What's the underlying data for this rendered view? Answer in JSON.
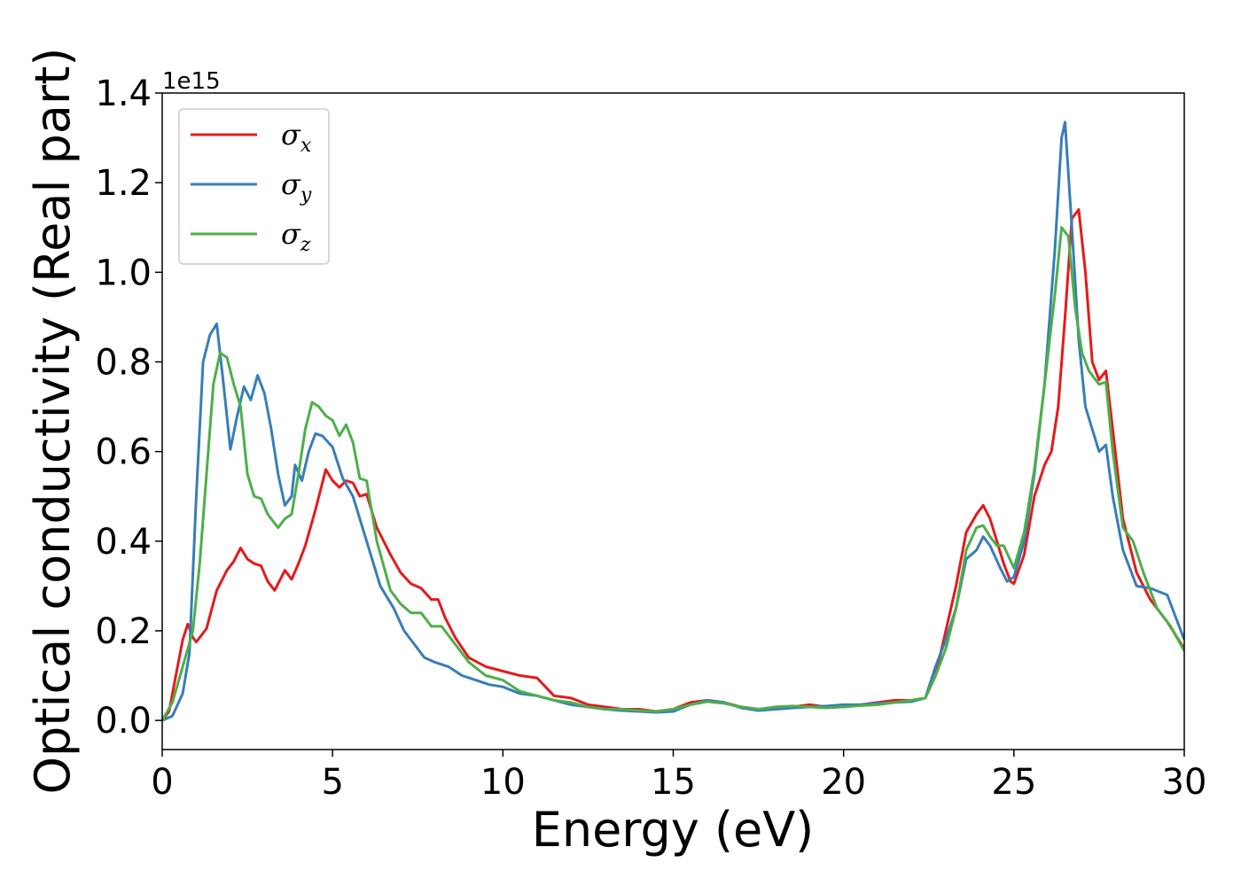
{
  "chart_data": {
    "type": "line",
    "xlabel": "Energy (eV)",
    "ylabel": "Optical conductivity (Real part)",
    "y_offset_label": "1e15",
    "xlim": [
      0,
      30
    ],
    "ylim": [
      -0.065,
      1.4
    ],
    "x_ticks": [
      0,
      5,
      10,
      15,
      20,
      25,
      30
    ],
    "x_tick_labels": [
      "0",
      "5",
      "10",
      "15",
      "20",
      "25",
      "30"
    ],
    "y_ticks": [
      0.0,
      0.2,
      0.4,
      0.6,
      0.8,
      1.0,
      1.2,
      1.4
    ],
    "y_tick_labels": [
      "0.0",
      "0.2",
      "0.4",
      "0.6",
      "0.8",
      "1.0",
      "1.2",
      "1.4"
    ],
    "grid": false,
    "legend_position": "top-left",
    "series": [
      {
        "name": "σ",
        "subscript": "x",
        "color": "#e41a1c",
        "points": [
          [
            0.0,
            0.0
          ],
          [
            0.2,
            0.02
          ],
          [
            0.4,
            0.1
          ],
          [
            0.6,
            0.18
          ],
          [
            0.75,
            0.215
          ],
          [
            0.9,
            0.185
          ],
          [
            1.0,
            0.175
          ],
          [
            1.3,
            0.205
          ],
          [
            1.6,
            0.29
          ],
          [
            1.9,
            0.335
          ],
          [
            2.1,
            0.355
          ],
          [
            2.3,
            0.385
          ],
          [
            2.5,
            0.36
          ],
          [
            2.7,
            0.35
          ],
          [
            2.9,
            0.345
          ],
          [
            3.1,
            0.31
          ],
          [
            3.3,
            0.29
          ],
          [
            3.6,
            0.335
          ],
          [
            3.8,
            0.315
          ],
          [
            4.0,
            0.35
          ],
          [
            4.2,
            0.39
          ],
          [
            4.5,
            0.47
          ],
          [
            4.8,
            0.56
          ],
          [
            5.0,
            0.535
          ],
          [
            5.2,
            0.52
          ],
          [
            5.4,
            0.535
          ],
          [
            5.6,
            0.53
          ],
          [
            5.8,
            0.5
          ],
          [
            6.0,
            0.505
          ],
          [
            6.3,
            0.43
          ],
          [
            6.7,
            0.37
          ],
          [
            7.0,
            0.33
          ],
          [
            7.3,
            0.305
          ],
          [
            7.6,
            0.295
          ],
          [
            7.9,
            0.27
          ],
          [
            8.1,
            0.27
          ],
          [
            8.3,
            0.23
          ],
          [
            8.6,
            0.185
          ],
          [
            9.0,
            0.14
          ],
          [
            9.5,
            0.12
          ],
          [
            10.0,
            0.11
          ],
          [
            10.5,
            0.1
          ],
          [
            11.0,
            0.095
          ],
          [
            11.5,
            0.055
          ],
          [
            12.0,
            0.05
          ],
          [
            12.5,
            0.035
          ],
          [
            13.0,
            0.03
          ],
          [
            13.5,
            0.025
          ],
          [
            14.0,
            0.025
          ],
          [
            14.5,
            0.02
          ],
          [
            15.0,
            0.025
          ],
          [
            15.5,
            0.04
          ],
          [
            16.0,
            0.045
          ],
          [
            16.5,
            0.04
          ],
          [
            17.0,
            0.03
          ],
          [
            17.5,
            0.025
          ],
          [
            18.0,
            0.028
          ],
          [
            18.5,
            0.03
          ],
          [
            19.0,
            0.035
          ],
          [
            19.5,
            0.03
          ],
          [
            20.0,
            0.03
          ],
          [
            20.5,
            0.035
          ],
          [
            21.0,
            0.04
          ],
          [
            21.5,
            0.045
          ],
          [
            22.0,
            0.045
          ],
          [
            22.4,
            0.05
          ],
          [
            22.7,
            0.1
          ],
          [
            23.0,
            0.2
          ],
          [
            23.3,
            0.3
          ],
          [
            23.6,
            0.42
          ],
          [
            23.9,
            0.46
          ],
          [
            24.1,
            0.48
          ],
          [
            24.3,
            0.45
          ],
          [
            24.5,
            0.4
          ],
          [
            24.7,
            0.35
          ],
          [
            24.9,
            0.31
          ],
          [
            25.0,
            0.305
          ],
          [
            25.3,
            0.37
          ],
          [
            25.6,
            0.5
          ],
          [
            25.9,
            0.57
          ],
          [
            26.1,
            0.6
          ],
          [
            26.3,
            0.7
          ],
          [
            26.5,
            0.9
          ],
          [
            26.7,
            1.12
          ],
          [
            26.9,
            1.14
          ],
          [
            27.1,
            1.0
          ],
          [
            27.3,
            0.8
          ],
          [
            27.5,
            0.76
          ],
          [
            27.7,
            0.78
          ],
          [
            27.9,
            0.65
          ],
          [
            28.2,
            0.45
          ],
          [
            28.6,
            0.33
          ],
          [
            29.0,
            0.27
          ],
          [
            29.5,
            0.22
          ],
          [
            30.0,
            0.16
          ]
        ]
      },
      {
        "name": "σ",
        "subscript": "y",
        "color": "#377eb8",
        "points": [
          [
            0.0,
            0.0
          ],
          [
            0.3,
            0.01
          ],
          [
            0.6,
            0.06
          ],
          [
            0.8,
            0.15
          ],
          [
            1.0,
            0.5
          ],
          [
            1.2,
            0.8
          ],
          [
            1.4,
            0.86
          ],
          [
            1.6,
            0.885
          ],
          [
            1.8,
            0.75
          ],
          [
            2.0,
            0.605
          ],
          [
            2.2,
            0.68
          ],
          [
            2.4,
            0.745
          ],
          [
            2.6,
            0.715
          ],
          [
            2.8,
            0.77
          ],
          [
            3.0,
            0.73
          ],
          [
            3.2,
            0.65
          ],
          [
            3.4,
            0.55
          ],
          [
            3.6,
            0.48
          ],
          [
            3.8,
            0.5
          ],
          [
            3.9,
            0.57
          ],
          [
            4.1,
            0.535
          ],
          [
            4.3,
            0.6
          ],
          [
            4.5,
            0.64
          ],
          [
            4.7,
            0.635
          ],
          [
            5.0,
            0.61
          ],
          [
            5.3,
            0.54
          ],
          [
            5.6,
            0.5
          ],
          [
            6.0,
            0.4
          ],
          [
            6.4,
            0.3
          ],
          [
            6.8,
            0.25
          ],
          [
            7.1,
            0.2
          ],
          [
            7.4,
            0.17
          ],
          [
            7.7,
            0.14
          ],
          [
            8.0,
            0.13
          ],
          [
            8.4,
            0.12
          ],
          [
            8.8,
            0.1
          ],
          [
            9.2,
            0.09
          ],
          [
            9.6,
            0.08
          ],
          [
            10.0,
            0.075
          ],
          [
            10.5,
            0.06
          ],
          [
            11.0,
            0.055
          ],
          [
            11.5,
            0.045
          ],
          [
            12.0,
            0.035
          ],
          [
            12.5,
            0.03
          ],
          [
            13.0,
            0.025
          ],
          [
            13.5,
            0.022
          ],
          [
            14.0,
            0.02
          ],
          [
            14.5,
            0.018
          ],
          [
            15.0,
            0.02
          ],
          [
            15.5,
            0.035
          ],
          [
            16.0,
            0.045
          ],
          [
            16.5,
            0.04
          ],
          [
            17.0,
            0.028
          ],
          [
            17.5,
            0.022
          ],
          [
            18.0,
            0.025
          ],
          [
            18.5,
            0.028
          ],
          [
            19.0,
            0.03
          ],
          [
            19.5,
            0.032
          ],
          [
            20.0,
            0.035
          ],
          [
            20.5,
            0.035
          ],
          [
            21.0,
            0.038
          ],
          [
            21.5,
            0.04
          ],
          [
            22.0,
            0.042
          ],
          [
            22.4,
            0.05
          ],
          [
            22.7,
            0.12
          ],
          [
            23.0,
            0.18
          ],
          [
            23.3,
            0.25
          ],
          [
            23.6,
            0.36
          ],
          [
            23.9,
            0.38
          ],
          [
            24.1,
            0.41
          ],
          [
            24.3,
            0.39
          ],
          [
            24.6,
            0.34
          ],
          [
            24.8,
            0.31
          ],
          [
            25.0,
            0.32
          ],
          [
            25.3,
            0.4
          ],
          [
            25.6,
            0.55
          ],
          [
            25.9,
            0.75
          ],
          [
            26.2,
            1.05
          ],
          [
            26.4,
            1.3
          ],
          [
            26.5,
            1.335
          ],
          [
            26.7,
            1.1
          ],
          [
            26.9,
            0.85
          ],
          [
            27.1,
            0.7
          ],
          [
            27.3,
            0.65
          ],
          [
            27.5,
            0.6
          ],
          [
            27.7,
            0.615
          ],
          [
            27.9,
            0.5
          ],
          [
            28.2,
            0.38
          ],
          [
            28.6,
            0.3
          ],
          [
            29.0,
            0.295
          ],
          [
            29.5,
            0.28
          ],
          [
            30.0,
            0.18
          ]
        ]
      },
      {
        "name": "σ",
        "subscript": "z",
        "color": "#4daf4a",
        "points": [
          [
            0.0,
            0.0
          ],
          [
            0.3,
            0.04
          ],
          [
            0.6,
            0.12
          ],
          [
            0.9,
            0.2
          ],
          [
            1.1,
            0.35
          ],
          [
            1.3,
            0.55
          ],
          [
            1.5,
            0.75
          ],
          [
            1.7,
            0.82
          ],
          [
            1.9,
            0.81
          ],
          [
            2.1,
            0.75
          ],
          [
            2.3,
            0.7
          ],
          [
            2.5,
            0.55
          ],
          [
            2.7,
            0.5
          ],
          [
            2.9,
            0.495
          ],
          [
            3.1,
            0.46
          ],
          [
            3.4,
            0.43
          ],
          [
            3.6,
            0.45
          ],
          [
            3.8,
            0.46
          ],
          [
            4.0,
            0.55
          ],
          [
            4.2,
            0.65
          ],
          [
            4.4,
            0.71
          ],
          [
            4.6,
            0.7
          ],
          [
            4.8,
            0.68
          ],
          [
            5.0,
            0.67
          ],
          [
            5.2,
            0.635
          ],
          [
            5.4,
            0.66
          ],
          [
            5.6,
            0.62
          ],
          [
            5.8,
            0.54
          ],
          [
            6.0,
            0.535
          ],
          [
            6.3,
            0.4
          ],
          [
            6.7,
            0.29
          ],
          [
            7.0,
            0.26
          ],
          [
            7.3,
            0.24
          ],
          [
            7.6,
            0.24
          ],
          [
            7.9,
            0.21
          ],
          [
            8.2,
            0.21
          ],
          [
            8.6,
            0.17
          ],
          [
            9.0,
            0.13
          ],
          [
            9.5,
            0.1
          ],
          [
            10.0,
            0.09
          ],
          [
            10.5,
            0.065
          ],
          [
            11.0,
            0.055
          ],
          [
            11.5,
            0.045
          ],
          [
            12.0,
            0.04
          ],
          [
            12.5,
            0.03
          ],
          [
            13.0,
            0.025
          ],
          [
            13.5,
            0.025
          ],
          [
            14.0,
            0.022
          ],
          [
            14.5,
            0.02
          ],
          [
            15.0,
            0.025
          ],
          [
            15.5,
            0.035
          ],
          [
            16.0,
            0.042
          ],
          [
            16.5,
            0.038
          ],
          [
            17.0,
            0.03
          ],
          [
            17.5,
            0.025
          ],
          [
            18.0,
            0.03
          ],
          [
            18.5,
            0.032
          ],
          [
            19.0,
            0.03
          ],
          [
            19.5,
            0.028
          ],
          [
            20.0,
            0.03
          ],
          [
            20.5,
            0.033
          ],
          [
            21.0,
            0.035
          ],
          [
            21.5,
            0.04
          ],
          [
            22.0,
            0.045
          ],
          [
            22.4,
            0.05
          ],
          [
            22.7,
            0.1
          ],
          [
            23.0,
            0.16
          ],
          [
            23.3,
            0.25
          ],
          [
            23.6,
            0.38
          ],
          [
            23.9,
            0.43
          ],
          [
            24.1,
            0.435
          ],
          [
            24.3,
            0.41
          ],
          [
            24.5,
            0.39
          ],
          [
            24.7,
            0.39
          ],
          [
            25.0,
            0.34
          ],
          [
            25.3,
            0.42
          ],
          [
            25.6,
            0.56
          ],
          [
            25.9,
            0.75
          ],
          [
            26.2,
            0.95
          ],
          [
            26.4,
            1.1
          ],
          [
            26.6,
            1.08
          ],
          [
            26.8,
            0.92
          ],
          [
            27.0,
            0.82
          ],
          [
            27.2,
            0.78
          ],
          [
            27.5,
            0.75
          ],
          [
            27.7,
            0.755
          ],
          [
            27.9,
            0.6
          ],
          [
            28.2,
            0.43
          ],
          [
            28.5,
            0.4
          ],
          [
            28.8,
            0.33
          ],
          [
            29.2,
            0.25
          ],
          [
            29.6,
            0.21
          ],
          [
            30.0,
            0.155
          ]
        ]
      }
    ]
  }
}
